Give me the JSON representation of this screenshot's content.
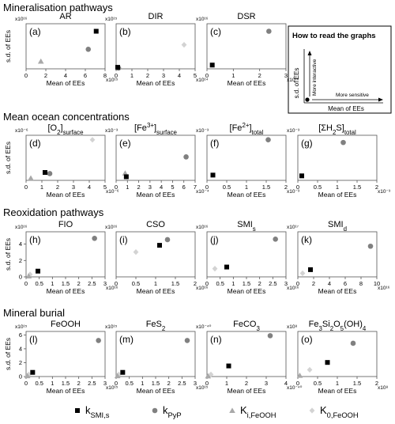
{
  "sections": [
    {
      "title": "Mineralisation pathways"
    },
    {
      "title": "Mean ocean concentrations"
    },
    {
      "title": "Reoxidation pathways"
    },
    {
      "title": "Mineral burial"
    }
  ],
  "axis": {
    "ylabel": "s.d. of EEs",
    "xlabel": "Mean of EEs"
  },
  "legend_box": {
    "title": "How to read the graphs",
    "ylabel": "s.d. of EEs",
    "xlabel": "Mean of EEs",
    "arrow_up": "More interactive",
    "arrow_right": "More sensitive"
  },
  "legend": [
    {
      "key": "kSMI",
      "main": "k",
      "sub": "SMI,s",
      "marker": "square",
      "color": "#000000"
    },
    {
      "key": "kPyP",
      "main": "k",
      "sub": "PyP",
      "marker": "circle",
      "color": "#808080"
    },
    {
      "key": "KiFeOOH",
      "main": "K",
      "sub": "i,FeOOH",
      "marker": "triangle",
      "color": "#a9a9a9"
    },
    {
      "key": "K0FeOOH",
      "main": "K",
      "sub": "0,FeOOH",
      "marker": "diamond",
      "color": "#d3d3d3"
    }
  ],
  "colors": {
    "axis": "#555555",
    "kSMI": "#000000",
    "kPyP": "#808080",
    "KiFeOOH": "#a9a9a9",
    "K0FeOOH": "#d3d3d3"
  },
  "chart_data": [
    {
      "type": "scatter",
      "letter": "(a)",
      "title": [
        {
          "t": "AR"
        }
      ],
      "yexp": "x10¹⁶",
      "xexp": "x10¹⁵",
      "xlim": [
        0,
        8
      ],
      "ylim": [
        0,
        3
      ],
      "xticks": [
        0,
        2,
        4,
        6,
        8
      ],
      "yticks": [],
      "points": {
        "kSMI": [
          7.1,
          2.5
        ],
        "kPyP": [
          6.3,
          1.3
        ],
        "KiFeOOH": [
          1.5,
          0.5
        ],
        "K0FeOOH": null
      }
    },
    {
      "type": "scatter",
      "letter": "(b)",
      "title": [
        {
          "t": "DIR"
        }
      ],
      "yexp": "x10¹⁵",
      "xexp": "x10¹⁴",
      "xlim": [
        0,
        5
      ],
      "ylim": [
        0,
        3
      ],
      "xticks": [
        0,
        1,
        2,
        3,
        4,
        5
      ],
      "yticks": [],
      "points": {
        "kSMI": [
          0.1,
          0.1
        ],
        "kPyP": [
          0.15,
          0.05
        ],
        "KiFeOOH": null,
        "K0FeOOH": [
          4.3,
          1.6
        ]
      }
    },
    {
      "type": "scatter",
      "letter": "(c)",
      "title": [
        {
          "t": "DSR"
        }
      ],
      "yexp": "x10¹⁶",
      "xexp": "x10¹⁶",
      "xlim": [
        0,
        3
      ],
      "ylim": [
        0,
        6
      ],
      "xticks": [
        0,
        1,
        2,
        3
      ],
      "yticks": [],
      "points": {
        "kSMI": [
          0.2,
          0.5
        ],
        "kPyP": [
          2.35,
          5.0
        ],
        "KiFeOOH": null,
        "K0FeOOH": null
      }
    },
    {
      "type": "scatter",
      "letter": "(d)",
      "title": [
        {
          "t": "[O"
        },
        {
          "t": "2",
          "sub": true
        },
        {
          "t": "]"
        },
        {
          "t": "surface",
          "sub": true
        }
      ],
      "yexp": "x10⁻⁶",
      "xexp": "x10⁻⁶",
      "xlim": [
        0,
        5
      ],
      "ylim": [
        0,
        2
      ],
      "xticks": [
        0,
        1,
        2,
        3,
        4,
        5
      ],
      "yticks": [],
      "points": {
        "kSMI": [
          1.2,
          0.35
        ],
        "kPyP": [
          1.5,
          0.3
        ],
        "KiFeOOH": [
          0.3,
          0.1
        ],
        "K0FeOOH": [
          4.2,
          1.8
        ]
      }
    },
    {
      "type": "scatter",
      "letter": "(e)",
      "title": [
        {
          "t": "[Fe"
        },
        {
          "t": "3+",
          "sup": true
        },
        {
          "t": "]"
        },
        {
          "t": "surface",
          "sub": true
        }
      ],
      "yexp": "x10⁻³",
      "xexp": "x10⁻⁴",
      "xlim": [
        0,
        7
      ],
      "ylim": [
        0,
        2.5
      ],
      "xticks": [
        0,
        1,
        2,
        3,
        4,
        5,
        6,
        7
      ],
      "yticks": [],
      "points": {
        "kSMI": [
          0.9,
          0.2
        ],
        "kPyP": [
          6.2,
          1.3
        ],
        "KiFeOOH": [
          0.8,
          0.4
        ],
        "K0FeOOH": null
      }
    },
    {
      "type": "scatter",
      "letter": "(f)",
      "title": [
        {
          "t": "[Fe"
        },
        {
          "t": "2+",
          "sup": true
        },
        {
          "t": "]"
        },
        {
          "t": "total",
          "sub": true
        }
      ],
      "yexp": "x10⁻³",
      "xexp": "x10⁻³",
      "xlim": [
        0,
        2
      ],
      "ylim": [
        0,
        3
      ],
      "xticks": [
        0,
        0.5,
        1.0,
        1.5,
        2.0
      ],
      "yticks": [],
      "points": {
        "kSMI": [
          0.15,
          0.35
        ],
        "kPyP": [
          1.55,
          2.7
        ],
        "KiFeOOH": null,
        "K0FeOOH": null
      }
    },
    {
      "type": "scatter",
      "letter": "(g)",
      "title": [
        {
          "t": "[ΣH"
        },
        {
          "t": "2",
          "sub": true
        },
        {
          "t": "S]"
        },
        {
          "t": "total",
          "sub": true
        }
      ],
      "yexp": "x10⁻³",
      "xexp": "x10⁻³",
      "xlim": [
        0,
        2
      ],
      "ylim": [
        0,
        2.5
      ],
      "xticks": [
        0,
        0.5,
        1.0,
        1.5,
        2.0
      ],
      "yticks": [],
      "points": {
        "kSMI": [
          0.1,
          0.25
        ],
        "kPyP": [
          1.15,
          2.1
        ],
        "KiFeOOH": null,
        "K0FeOOH": null
      }
    },
    {
      "type": "scatter",
      "letter": "(h)",
      "title": [
        {
          "t": "FIO"
        }
      ],
      "yexp": "x10¹⁶",
      "xexp": "x10¹⁶",
      "xlim": [
        0,
        3
      ],
      "ylim": [
        0,
        5.5
      ],
      "xticks": [
        0,
        0.5,
        1.0,
        1.5,
        2.0,
        2.5,
        3.0
      ],
      "yticks": [
        0,
        2,
        4
      ],
      "points": {
        "kSMI": [
          0.45,
          0.7
        ],
        "kPyP": [
          2.6,
          4.7
        ],
        "KiFeOOH": [
          0.1,
          0.1
        ],
        "K0FeOOH": [
          0.15,
          0.3
        ]
      }
    },
    {
      "type": "scatter",
      "letter": "(i)",
      "title": [
        {
          "t": "CSO"
        }
      ],
      "yexp": "x10¹⁶",
      "xexp": "x10¹⁶",
      "xlim": [
        0,
        2
      ],
      "ylim": [
        0,
        4
      ],
      "xticks": [
        0,
        0.5,
        1.0,
        1.5,
        2.0
      ],
      "yticks": [],
      "points": {
        "kSMI": [
          1.1,
          2.8
        ],
        "kPyP": [
          1.3,
          3.3
        ],
        "KiFeOOH": null,
        "K0FeOOH": [
          0.5,
          2.2
        ]
      }
    },
    {
      "type": "scatter",
      "letter": "(j)",
      "title": [
        {
          "t": "SMI"
        },
        {
          "t": "s",
          "sub": true
        }
      ],
      "yexp": "x10¹⁶",
      "xexp": "x10¹⁶",
      "xlim": [
        0,
        3
      ],
      "ylim": [
        0,
        5.5
      ],
      "xticks": [
        0,
        0.5,
        1.0,
        1.5,
        2.0,
        2.5,
        3.0
      ],
      "yticks": [],
      "points": {
        "kSMI": [
          0.75,
          1.2
        ],
        "kPyP": [
          2.6,
          4.6
        ],
        "KiFeOOH": null,
        "K0FeOOH": [
          0.3,
          1.0
        ]
      }
    },
    {
      "type": "scatter",
      "letter": "(k)",
      "title": [
        {
          "t": "SMI"
        },
        {
          "t": "d",
          "sub": true
        }
      ],
      "yexp": "x10¹⁷",
      "xexp": "x10¹⁶",
      "xlim": [
        0,
        10
      ],
      "ylim": [
        0,
        2.5
      ],
      "xticks": [
        0,
        2,
        4,
        6,
        8,
        10
      ],
      "yticks": [],
      "points": {
        "kSMI": [
          1.6,
          0.4
        ],
        "kPyP": [
          9.2,
          1.7
        ],
        "KiFeOOH": null,
        "K0FeOOH": [
          0.6,
          0.2
        ]
      }
    },
    {
      "type": "scatter",
      "letter": "(l)",
      "title": [
        {
          "t": "FeOOH"
        }
      ],
      "yexp": "x10¹⁵",
      "xexp": "x10¹⁵",
      "xlim": [
        0,
        3
      ],
      "ylim": [
        0,
        6.5
      ],
      "xticks": [
        0,
        0.5,
        1.0,
        1.5,
        2.0,
        2.5,
        3.0
      ],
      "yticks": [
        0,
        2,
        4,
        6
      ],
      "points": {
        "kSMI": [
          0.25,
          0.6
        ],
        "kPyP": [
          2.75,
          5.2
        ],
        "KiFeOOH": [
          0.05,
          0.1
        ],
        "K0FeOOH": [
          0.1,
          0.3
        ]
      }
    },
    {
      "type": "scatter",
      "letter": "(m)",
      "title": [
        {
          "t": "FeS"
        },
        {
          "t": "2",
          "sub": true
        }
      ],
      "yexp": "x10¹⁵",
      "xexp": "x10¹⁵",
      "xlim": [
        0,
        3
      ],
      "ylim": [
        0,
        6.5
      ],
      "xticks": [
        0,
        0.5,
        1.0,
        1.5,
        2.0,
        2.5,
        3.0
      ],
      "yticks": [],
      "points": {
        "kSMI": [
          0.25,
          0.6
        ],
        "kPyP": [
          2.7,
          5.2
        ],
        "KiFeOOH": [
          0.05,
          0.1
        ],
        "K0FeOOH": [
          0.1,
          0.3
        ]
      }
    },
    {
      "type": "scatter",
      "letter": "(n)",
      "title": [
        {
          "t": "FeCO"
        },
        {
          "t": "3",
          "sub": true
        }
      ],
      "yexp": "x10⁻⁴⁰",
      "xexp": "x10⁻⁴⁰",
      "xlim": [
        0,
        4
      ],
      "ylim": [
        0,
        8.5
      ],
      "xticks": [
        0,
        1,
        2,
        3,
        4
      ],
      "yticks": [],
      "points": {
        "kSMI": [
          1.1,
          2.0
        ],
        "kPyP": [
          3.2,
          7.7
        ],
        "KiFeOOH": [
          0.05,
          0.1
        ],
        "K0FeOOH": [
          0.2,
          0.4
        ]
      }
    },
    {
      "type": "scatter",
      "letter": "(o)",
      "title": [
        {
          "t": "Fe"
        },
        {
          "t": "3",
          "sub": true
        },
        {
          "t": "Si"
        },
        {
          "t": "2",
          "sub": true
        },
        {
          "t": "O"
        },
        {
          "t": "5",
          "sub": true
        },
        {
          "t": "(OH)"
        },
        {
          "t": "4",
          "sub": true
        }
      ],
      "yexp": "x10⁸",
      "xexp": "x10⁸",
      "xlim": [
        0,
        2
      ],
      "ylim": [
        0,
        4
      ],
      "xticks": [
        0,
        0.5,
        1.0,
        1.5,
        2.0
      ],
      "yticks": [],
      "points": {
        "kSMI": [
          0.75,
          1.25
        ],
        "kPyP": [
          1.4,
          2.95
        ],
        "KiFeOOH": [
          0.05,
          0.1
        ],
        "K0FeOOH": [
          0.3,
          0.6
        ]
      }
    }
  ]
}
